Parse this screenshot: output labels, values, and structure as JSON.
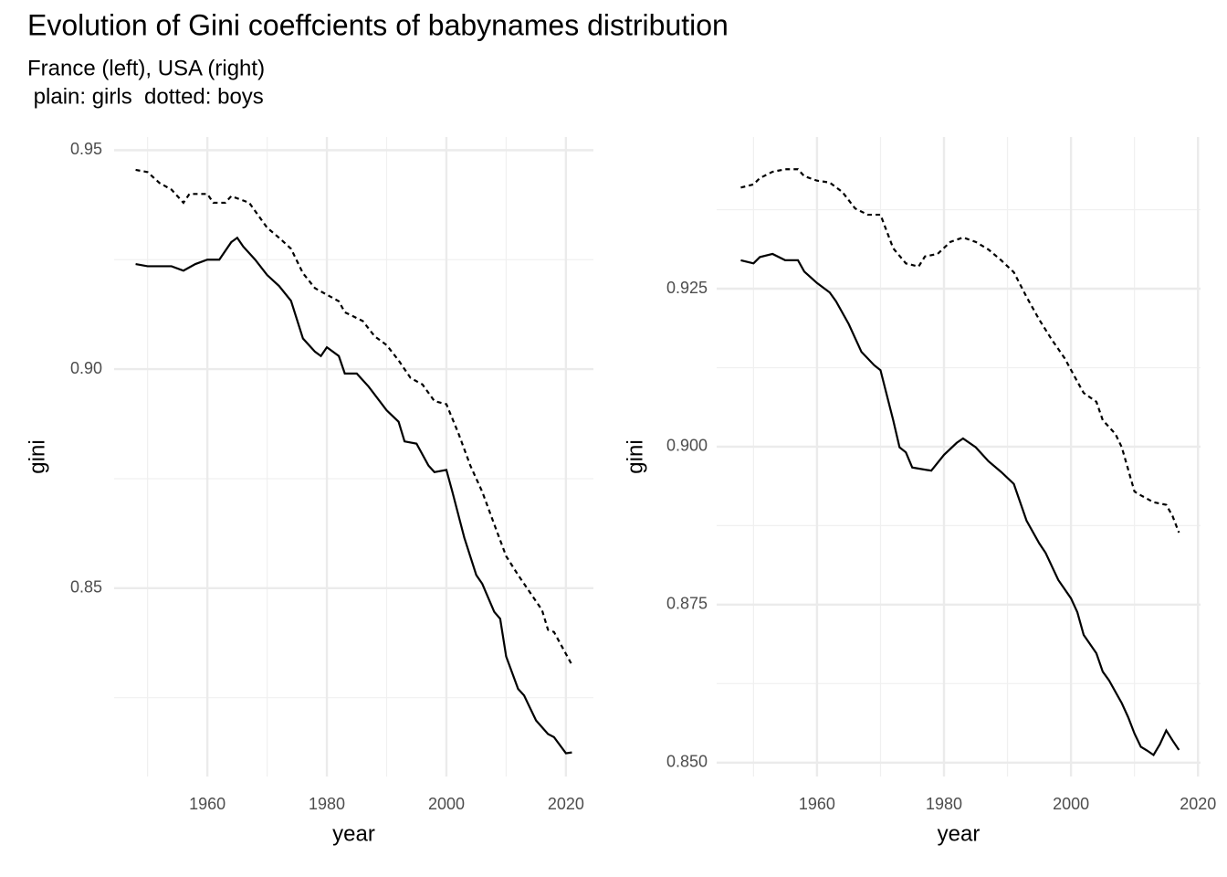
{
  "title": "Evolution of Gini coeffcients of babynames distribution",
  "subtitle": [
    "France (left), USA (right)",
    " plain: girls  dotted: boys"
  ],
  "chart_data": [
    {
      "type": "line",
      "xlabel": "year",
      "ylabel": "gini",
      "xlim": [
        1944.4,
        2024.6
      ],
      "ylim": [
        0.807,
        0.953
      ],
      "xticks": [
        1960,
        1980,
        2000,
        2020
      ],
      "yticks": [
        0.85,
        {
          "value": 0.9,
          "label": "0.90"
        },
        0.95
      ],
      "grid": true,
      "minor_grid": true,
      "series": [
        {
          "color": "#000000",
          "linestyle": "solid",
          "x": [
            1948,
            1950,
            1952,
            1954,
            1956,
            1958,
            1960,
            1962,
            1964,
            1965,
            1966,
            1968,
            1970,
            1972,
            1974,
            1976,
            1978,
            1979,
            1980,
            1982,
            1983,
            1985,
            1987,
            1990,
            1992,
            1993,
            1995,
            1997,
            1998,
            2000,
            2001,
            2003,
            2005,
            2006,
            2008,
            2009,
            2010,
            2012,
            2013,
            2015,
            2017,
            2018,
            2020,
            2021
          ],
          "values": [
            0.924,
            0.9235,
            0.9235,
            0.9235,
            0.9225,
            0.924,
            0.925,
            0.925,
            0.929,
            0.93,
            0.928,
            0.925,
            0.9215,
            0.919,
            0.9156,
            0.907,
            0.904,
            0.903,
            0.905,
            0.903,
            0.899,
            0.899,
            0.896,
            0.8906,
            0.888,
            0.8835,
            0.883,
            0.878,
            0.8765,
            0.877,
            0.872,
            0.8615,
            0.853,
            0.851,
            0.8446,
            0.843,
            0.8344,
            0.827,
            0.8255,
            0.8198,
            0.8167,
            0.816,
            0.8123,
            0.8125
          ]
        },
        {
          "color": "#000000",
          "linestyle": "dotted",
          "x": [
            1948,
            1950,
            1952,
            1954,
            1956,
            1957,
            1960,
            1961,
            1963,
            1964,
            1967,
            1970,
            1972,
            1974,
            1976,
            1978,
            1980,
            1982,
            1983,
            1986,
            1988,
            1990,
            1992,
            1994,
            1996,
            1998,
            2000,
            2002,
            2004,
            2006,
            2008,
            2010,
            2012,
            2014,
            2016,
            2017,
            2018,
            2020,
            2021
          ],
          "values": [
            0.9455,
            0.945,
            0.9425,
            0.941,
            0.938,
            0.94,
            0.94,
            0.938,
            0.938,
            0.9395,
            0.938,
            0.9323,
            0.93,
            0.9275,
            0.9219,
            0.9185,
            0.917,
            0.9155,
            0.913,
            0.911,
            0.9075,
            0.9055,
            0.902,
            0.898,
            0.8965,
            0.8927,
            0.892,
            0.8854,
            0.878,
            0.872,
            0.8646,
            0.8573,
            0.853,
            0.849,
            0.845,
            0.8405,
            0.84,
            0.835,
            0.8325
          ]
        }
      ]
    },
    {
      "type": "line",
      "xlabel": "year",
      "ylabel": "gini",
      "xlim": [
        1944.2,
        2020.4
      ],
      "ylim": [
        0.8478,
        0.949
      ],
      "xticks": [
        1960,
        1980,
        2000,
        2020
      ],
      "yticks": [
        {
          "value": 0.85,
          "label": "0.850"
        },
        0.875,
        {
          "value": 0.9,
          "label": "0.900"
        },
        0.925
      ],
      "grid": true,
      "minor_grid": true,
      "series": [
        {
          "color": "#000000",
          "linestyle": "solid",
          "x": [
            1948,
            1950,
            1951,
            1953,
            1955,
            1957,
            1958,
            1960,
            1962,
            1963,
            1965,
            1967,
            1969,
            1970,
            1972,
            1973,
            1974,
            1975,
            1978,
            1980,
            1982,
            1983,
            1985,
            1987,
            1989,
            1991,
            1993,
            1995,
            1996,
            1998,
            2000,
            2001,
            2002,
            2004,
            2005,
            2006,
            2008,
            2009,
            2010,
            2011,
            2012,
            2013,
            2014,
            2015,
            2016,
            2017
          ],
          "values": [
            0.9295,
            0.929,
            0.93,
            0.9305,
            0.9295,
            0.9295,
            0.9277,
            0.9259,
            0.9244,
            0.923,
            0.9194,
            0.915,
            0.9129,
            0.9121,
            0.9042,
            0.8999,
            0.8991,
            0.8967,
            0.8962,
            0.8987,
            0.9006,
            0.9013,
            0.8999,
            0.8977,
            0.896,
            0.8941,
            0.8883,
            0.8847,
            0.8832,
            0.8789,
            0.876,
            0.8738,
            0.8702,
            0.8673,
            0.8644,
            0.863,
            0.8594,
            0.8572,
            0.8546,
            0.8525,
            0.8519,
            0.8512,
            0.8529,
            0.8551,
            0.8535,
            0.852
          ]
        },
        {
          "color": "#000000",
          "linestyle": "dotted",
          "x": [
            1948,
            1950,
            1951,
            1953,
            1955,
            1957,
            1958,
            1960,
            1962,
            1964,
            1966,
            1968,
            1970,
            1972,
            1974,
            1976,
            1977,
            1979,
            1981,
            1983,
            1985,
            1987,
            1989,
            1991,
            1993,
            1995,
            1997,
            1999,
            2001,
            2002,
            2004,
            2005,
            2007,
            2008,
            2010,
            2011,
            2013,
            2015,
            2016,
            2017
          ],
          "values": [
            0.941,
            0.9415,
            0.9425,
            0.9435,
            0.9439,
            0.9439,
            0.9428,
            0.9421,
            0.9418,
            0.9403,
            0.9377,
            0.9367,
            0.9367,
            0.9314,
            0.929,
            0.9285,
            0.9301,
            0.9305,
            0.9324,
            0.9331,
            0.9324,
            0.9312,
            0.9295,
            0.9276,
            0.9237,
            0.9201,
            0.9169,
            0.914,
            0.9103,
            0.9085,
            0.9071,
            0.9042,
            0.902,
            0.8999,
            0.8929,
            0.8923,
            0.8912,
            0.8908,
            0.889,
            0.8864
          ]
        }
      ]
    }
  ]
}
